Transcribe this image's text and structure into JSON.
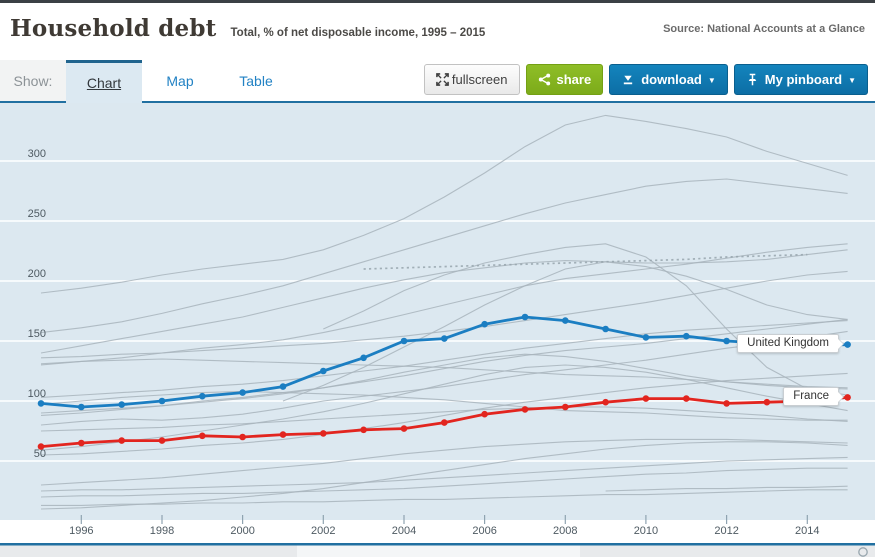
{
  "header": {
    "title": "Household debt",
    "subtitle": "Total, % of net disposable income, 1995 – 2015",
    "source": "Source: National Accounts at a Glance"
  },
  "toolbar": {
    "show_label": "Show:",
    "tabs": [
      {
        "label": "Chart",
        "active": true
      },
      {
        "label": "Map",
        "active": false
      },
      {
        "label": "Table",
        "active": false
      }
    ],
    "buttons": {
      "fullscreen": "fullscreen",
      "share": "share",
      "download": "download",
      "pinboard": "My pinboard"
    },
    "caret": "▼"
  },
  "colors": {
    "plot_bg": "#dce8f0",
    "grid": "#ffffff",
    "background_line": "#a8b4bc",
    "dotted_line": "#96a4ad",
    "tick": "#8fa3b0",
    "axis_label": "#4e5a62",
    "united_kingdom": "#1b7ec2",
    "france": "#e2251f",
    "chart_border": "#2170a1",
    "header_bar": "#3b4045",
    "active_tab_bg": "#dce9f2",
    "tab_text": "#2282c4",
    "share_green": "#85b420",
    "button_blue": "#0e76ad",
    "footer_bg": "#e8eaec",
    "footer_mid": "#f4f6f7"
  },
  "chart_data": {
    "type": "line",
    "title": "Household debt",
    "ylabel": "% of net disposable income",
    "grid": "horizontal",
    "legend_position": "inline-labels",
    "x": [
      1995,
      1996,
      1997,
      1998,
      1999,
      2000,
      2001,
      2002,
      2003,
      2004,
      2005,
      2006,
      2007,
      2008,
      2009,
      2010,
      2011,
      2012,
      2013,
      2014,
      2015
    ],
    "x_ticks": [
      "1996",
      "1998",
      "2000",
      "2002",
      "2004",
      "2006",
      "2008",
      "2010",
      "2012",
      "2014"
    ],
    "y_ticks": [
      300,
      250,
      200,
      150,
      100,
      50
    ],
    "ylim": [
      0,
      345
    ],
    "series": [
      {
        "name": "United Kingdom",
        "role": "highlight",
        "color": "#1b7ec2",
        "values": [
          98,
          95,
          97,
          100,
          104,
          107,
          112,
          125,
          136,
          150,
          152,
          164,
          170,
          167,
          160,
          153,
          154,
          150,
          148,
          146,
          147
        ]
      },
      {
        "name": "France",
        "role": "highlight",
        "color": "#e2251f",
        "values": [
          62,
          65,
          67,
          67,
          71,
          70,
          72,
          73,
          76,
          77,
          82,
          89,
          93,
          95,
          99,
          102,
          102,
          98,
          99,
          100,
          103
        ]
      },
      {
        "name": "background-1",
        "role": "background",
        "values": [
          190,
          194,
          199,
          205,
          210,
          214,
          218,
          226,
          238,
          252,
          270,
          290,
          312,
          330,
          338,
          333,
          327,
          320,
          308,
          298,
          288
        ]
      },
      {
        "name": "background-2",
        "role": "background",
        "values": [
          157,
          161,
          166,
          173,
          181,
          188,
          196,
          206,
          216,
          226,
          236,
          246,
          256,
          265,
          272,
          279,
          283,
          285,
          281,
          277,
          273
        ]
      },
      {
        "name": "background-3",
        "role": "background",
        "values": [
          130,
          133,
          136,
          140,
          144,
          147,
          151,
          157,
          164,
          172,
          180,
          188,
          196,
          202,
          206,
          210,
          214,
          219,
          224,
          228,
          231
        ]
      },
      {
        "name": "background-4",
        "role": "background",
        "values": [
          140,
          146,
          152,
          158,
          164,
          170,
          178,
          186,
          194,
          201,
          207,
          211,
          215,
          217,
          216,
          215,
          215,
          216,
          218,
          222,
          226
        ]
      },
      {
        "name": "background-5",
        "role": "background",
        "values": [
          136,
          137,
          139,
          140,
          142,
          144,
          146,
          148,
          151,
          154,
          158,
          162,
          167,
          172,
          177,
          182,
          188,
          194,
          200,
          205,
          208
        ]
      },
      {
        "name": "background-6",
        "role": "background",
        "values": [
          88,
          90,
          93,
          96,
          100,
          103,
          107,
          111,
          116,
          121,
          127,
          133,
          138,
          142,
          145,
          148,
          152,
          156,
          160,
          164,
          168
        ]
      },
      {
        "name": "background-7",
        "role": "background",
        "values": [
          103,
          105,
          107,
          109,
          112,
          114,
          117,
          121,
          125,
          129,
          134,
          139,
          144,
          148,
          152,
          156,
          159,
          161,
          163,
          165,
          167
        ]
      },
      {
        "name": "background-8",
        "role": "background",
        "values": [
          90,
          92,
          94,
          96,
          99,
          102,
          106,
          111,
          117,
          124,
          130,
          136,
          139,
          137,
          133,
          127,
          121,
          116,
          113,
          111,
          110
        ]
      },
      {
        "name": "background-9",
        "role": "background",
        "values": [
          131,
          133,
          134,
          135,
          134,
          133,
          132,
          131,
          130,
          129,
          128,
          126,
          124,
          122,
          121,
          120,
          118,
          116,
          114,
          112,
          111
        ]
      },
      {
        "name": "background-10",
        "role": "background",
        "values": [
          97,
          100,
          103,
          105,
          107,
          108,
          107,
          106,
          105,
          103,
          101,
          98,
          95,
          92,
          91,
          90,
          88,
          86,
          85,
          84,
          84
        ]
      },
      {
        "name": "background-11",
        "role": "background",
        "values": [
          59,
          62,
          66,
          70,
          75,
          80,
          85,
          91,
          98,
          106,
          114,
          122,
          128,
          130,
          128,
          124,
          118,
          111,
          104,
          98,
          92
        ]
      },
      {
        "name": "background-12",
        "role": "background",
        "values": [
          80,
          83,
          85,
          84,
          86,
          89,
          94,
          100,
          104,
          108,
          112,
          117,
          122,
          126,
          130,
          134,
          139,
          144,
          148,
          153,
          158
        ]
      },
      {
        "name": "background-13",
        "role": "background",
        "values": [
          55,
          56,
          58,
          60,
          63,
          65,
          68,
          72,
          77,
          82,
          88,
          94,
          99,
          103,
          107,
          111,
          114,
          117,
          119,
          121,
          123
        ]
      },
      {
        "name": "background-14",
        "role": "background",
        "values": [
          30,
          32,
          34,
          36,
          39,
          42,
          45,
          48,
          52,
          56,
          59,
          62,
          64,
          66,
          67,
          68,
          68,
          68,
          67,
          66,
          65
        ]
      },
      {
        "name": "background-15",
        "role": "background",
        "values": [
          null,
          null,
          null,
          null,
          null,
          null,
          100,
          113,
          128,
          145,
          162,
          180,
          196,
          210,
          216,
          212,
          204,
          193,
          180,
          172,
          168
        ]
      },
      {
        "name": "background-16",
        "role": "background",
        "values": [
          25,
          26,
          26,
          27,
          28,
          29,
          30,
          31,
          32,
          34,
          36,
          38,
          40,
          42,
          44,
          46,
          48,
          50,
          51,
          52,
          53
        ]
      },
      {
        "name": "background-17",
        "role": "background",
        "values": [
          20,
          21,
          21,
          22,
          23,
          23,
          24,
          25,
          26,
          27,
          29,
          31,
          33,
          35,
          37,
          39,
          40,
          42,
          43,
          44,
          44
        ]
      },
      {
        "name": "background-18",
        "role": "background",
        "values": [
          13,
          13,
          14,
          14,
          15,
          15,
          16,
          16,
          17,
          18,
          18,
          19,
          20,
          21,
          22,
          22,
          23,
          24,
          25,
          26,
          26
        ]
      },
      {
        "name": "background-19",
        "role": "background",
        "values": [
          null,
          null,
          null,
          null,
          null,
          null,
          null,
          null,
          null,
          null,
          null,
          null,
          null,
          null,
          25,
          26,
          27,
          27,
          28,
          28,
          29
        ]
      },
      {
        "name": "background-20",
        "role": "background",
        "values": [
          10,
          11,
          13,
          15,
          17,
          20,
          23,
          27,
          32,
          37,
          42,
          47,
          52,
          56,
          60,
          63,
          65,
          66,
          66,
          65,
          63
        ]
      },
      {
        "name": "background-21",
        "role": "background",
        "values": [
          75,
          76,
          77,
          78,
          80,
          81,
          83,
          85,
          87,
          89,
          91,
          93,
          94,
          95,
          95,
          94,
          92,
          90,
          88,
          85,
          83
        ]
      },
      {
        "name": "background-22",
        "role": "background",
        "values": [
          null,
          null,
          null,
          null,
          null,
          null,
          null,
          160,
          175,
          192,
          205,
          215,
          222,
          228,
          231,
          220,
          196,
          160,
          128,
          110,
          105
        ]
      },
      {
        "name": "average-dotted",
        "role": "background",
        "style": "dotted",
        "values": [
          null,
          null,
          null,
          null,
          null,
          null,
          null,
          null,
          210,
          211,
          212,
          213,
          214,
          215,
          216,
          217,
          218,
          220,
          221,
          222,
          null
        ]
      }
    ]
  }
}
